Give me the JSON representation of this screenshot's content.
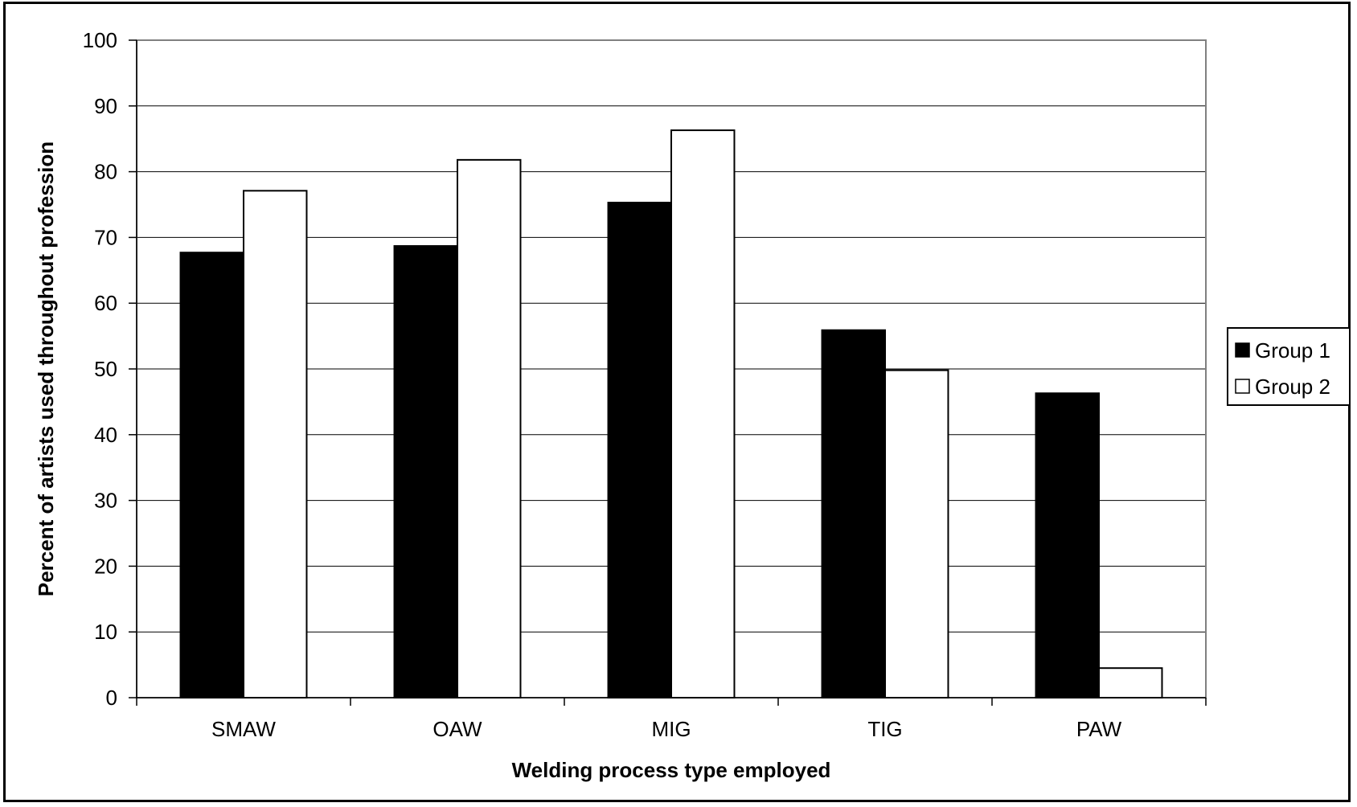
{
  "chart_data": {
    "type": "bar",
    "title": "",
    "xlabel": "Welding process type employed",
    "ylabel": "Percent of artists used throughout profession",
    "categories": [
      "SMAW",
      "OAW",
      "MIG",
      "TIG",
      "PAW"
    ],
    "series": [
      {
        "name": "Group 1",
        "values": [
          67.7,
          68.7,
          75.3,
          55.9,
          46.3
        ],
        "color": "#000000"
      },
      {
        "name": "Group 2",
        "values": [
          77.1,
          81.8,
          86.3,
          49.8,
          4.5
        ],
        "color": "#ffffff"
      }
    ],
    "ylim": [
      0,
      100
    ],
    "yticks": [
      "0",
      "10",
      "20",
      "30",
      "40",
      "50",
      "60",
      "70",
      "80",
      "90",
      "100"
    ],
    "grid": true,
    "legend_position": "right"
  }
}
